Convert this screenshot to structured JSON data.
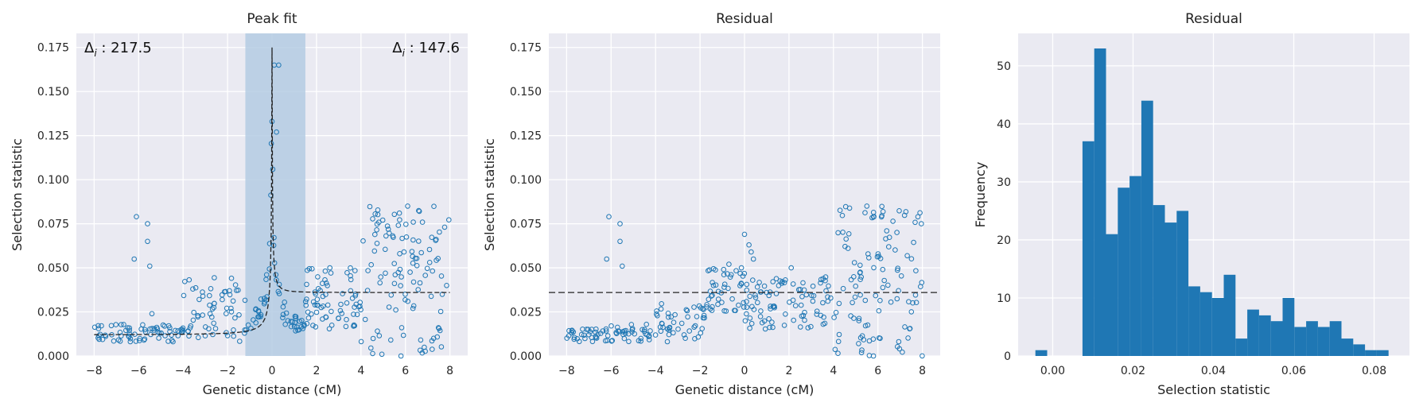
{
  "colors": {
    "axes_bg": "#EAEAF2",
    "grid": "#FFFFFF",
    "marker": "#1F77B4",
    "bar": "#1F77B4",
    "span": "#B4CBE3",
    "fit_line": "#222222"
  },
  "chart_data": [
    {
      "type": "scatter",
      "title": "Peak fit",
      "xlabel": "Genetic distance (cM)",
      "ylabel": "Selection statistic",
      "xlim": [
        -8.8,
        8.8
      ],
      "ylim": [
        0,
        0.183
      ],
      "xticks": [
        -8,
        -6,
        -4,
        -2,
        0,
        2,
        4,
        6,
        8
      ],
      "xticklabels": [
        "−8",
        "−6",
        "−4",
        "−2",
        "0",
        "2",
        "4",
        "6",
        "8"
      ],
      "yticks": [
        0,
        0.025,
        0.05,
        0.075,
        0.1,
        0.125,
        0.15,
        0.175
      ],
      "yticklabels": [
        "0.000",
        "0.025",
        "0.050",
        "0.075",
        "0.100",
        "0.125",
        "0.150",
        "0.175"
      ],
      "grid": true,
      "annotations": [
        {
          "label": "Δ",
          "sub": "i",
          "value": " : 217.5",
          "position": "top-left"
        },
        {
          "label": "Δ",
          "sub": "i",
          "value": " : 147.6",
          "position": "top-right"
        }
      ],
      "highlight_span": {
        "x_start": -1.2,
        "x_end": 1.5
      },
      "fit_curve": {
        "peak_x": 0.0,
        "peak_y": 0.175,
        "left_baseline": 0.012,
        "right_baseline": 0.036
      },
      "series": [
        {
          "name": "",
          "segments": [
            {
              "x_range": [
                -8.0,
                -4.0
              ],
              "y_range": [
                0.008,
                0.018
              ],
              "n": 70
            },
            {
              "x_range": [
                -4.0,
                -1.2
              ],
              "y_range": [
                0.008,
                0.045
              ],
              "n": 60
            },
            {
              "x_range": [
                -1.2,
                1.5
              ],
              "y_range": [
                0.025,
                0.165
              ],
              "n": 60
            },
            {
              "x_range": [
                1.5,
                4.0
              ],
              "y_range": [
                0.015,
                0.05
              ],
              "n": 70
            },
            {
              "x_range": [
                4.0,
                8.0
              ],
              "y_range": [
                0.0,
                0.085
              ],
              "n": 110
            }
          ],
          "outliers": [
            [
              -6.2,
              0.055
            ],
            [
              -6.1,
              0.079
            ],
            [
              -5.6,
              0.075
            ],
            [
              -5.6,
              0.065
            ],
            [
              -5.5,
              0.051
            ],
            [
              -5.4,
              0.024
            ],
            [
              0.1,
              0.165
            ],
            [
              0.3,
              0.165
            ],
            [
              0.0,
              0.133
            ],
            [
              0.2,
              0.127
            ],
            [
              5.8,
              0.0
            ],
            [
              6.1,
              0.085
            ],
            [
              2.6,
              0.05
            ]
          ]
        }
      ]
    },
    {
      "type": "scatter",
      "title": "Residual",
      "xlabel": "Genetic distance (cM)",
      "ylabel": "Selection statistic",
      "xlim": [
        -8.8,
        8.8
      ],
      "ylim": [
        0,
        0.183
      ],
      "xticks": [
        -8,
        -6,
        -4,
        -2,
        0,
        2,
        4,
        6,
        8
      ],
      "xticklabels": [
        "−8",
        "−6",
        "−4",
        "−2",
        "0",
        "2",
        "4",
        "6",
        "8"
      ],
      "yticks": [
        0,
        0.025,
        0.05,
        0.075,
        0.1,
        0.125,
        0.15,
        0.175
      ],
      "yticklabels": [
        "0.000",
        "0.025",
        "0.050",
        "0.075",
        "0.100",
        "0.125",
        "0.150",
        "0.175"
      ],
      "grid": true,
      "reference_line_y": 0.036,
      "series": [
        {
          "name": "",
          "segments": [
            {
              "x_range": [
                -8.0,
                -4.0
              ],
              "y_range": [
                0.008,
                0.018
              ],
              "n": 70
            },
            {
              "x_range": [
                -4.0,
                -1.8
              ],
              "y_range": [
                0.008,
                0.03
              ],
              "n": 45
            },
            {
              "x_range": [
                -1.8,
                0.0
              ],
              "y_range": [
                0.025,
                0.05
              ],
              "n": 45
            },
            {
              "x_range": [
                0.0,
                4.0
              ],
              "y_range": [
                0.015,
                0.045
              ],
              "n": 90
            },
            {
              "x_range": [
                4.0,
                8.0
              ],
              "y_range": [
                0.0,
                0.085
              ],
              "n": 110
            }
          ],
          "outliers": [
            [
              -6.2,
              0.055
            ],
            [
              -6.1,
              0.079
            ],
            [
              -5.6,
              0.075
            ],
            [
              -5.6,
              0.065
            ],
            [
              -5.5,
              0.051
            ],
            [
              0.0,
              0.069
            ],
            [
              0.2,
              0.063
            ],
            [
              0.3,
              0.059
            ],
            [
              0.4,
              0.055
            ],
            [
              -0.7,
              0.052
            ],
            [
              2.1,
              0.05
            ],
            [
              5.8,
              0.0
            ],
            [
              5.5,
              0.085
            ],
            [
              6.1,
              0.01
            ]
          ]
        }
      ]
    },
    {
      "type": "bar",
      "title": "Residual",
      "xlabel": "Selection statistic",
      "ylabel": "Frequency",
      "xlim": [
        -0.0086,
        0.0888
      ],
      "ylim": [
        0,
        55.6
      ],
      "xticks": [
        0,
        0.02,
        0.04,
        0.06,
        0.08
      ],
      "xticklabels": [
        "0.00",
        "0.02",
        "0.04",
        "0.06",
        "0.08"
      ],
      "yticks": [
        0,
        10,
        20,
        30,
        40,
        50
      ],
      "yticklabels": [
        "0",
        "10",
        "20",
        "30",
        "40",
        "50"
      ],
      "grid": true,
      "bin_edges": [
        -0.0043,
        -0.00137,
        0.00156,
        0.00449,
        0.00742,
        0.01035,
        0.01328,
        0.01621,
        0.01914,
        0.02207,
        0.025,
        0.02793,
        0.03086,
        0.03379,
        0.03672,
        0.03965,
        0.04258,
        0.04551,
        0.04844,
        0.05137,
        0.0543,
        0.05723,
        0.06016,
        0.06309,
        0.06602,
        0.06895,
        0.07188,
        0.07481,
        0.07774,
        0.08067,
        0.0836
      ],
      "values": [
        1,
        0,
        0,
        0,
        37,
        53,
        21,
        29,
        31,
        44,
        26,
        23,
        25,
        12,
        11,
        10,
        14,
        3,
        8,
        7,
        6,
        10,
        5,
        6,
        5,
        6,
        3,
        2,
        1,
        1
      ]
    }
  ]
}
